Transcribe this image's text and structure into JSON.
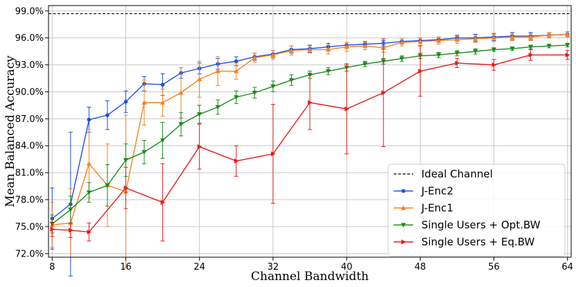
{
  "chart_data": {
    "type": "line",
    "title": "",
    "xlabel": "Channel Bandwidth",
    "ylabel": "Mean Balanced Accuracy",
    "xlim": [
      7.6,
      64.4
    ],
    "ylim": [
      71.6,
      99.6
    ],
    "xticks": [
      8,
      16,
      24,
      32,
      40,
      48,
      56,
      64
    ],
    "yticks": [
      72,
      75,
      78,
      81,
      84,
      87,
      90,
      93,
      96,
      99
    ],
    "xtick_labels": [
      "8",
      "16",
      "24",
      "32",
      "40",
      "48",
      "56",
      "64"
    ],
    "ytick_labels": [
      "72.0%",
      "75.0%",
      "78.0%",
      "81.0%",
      "84.0%",
      "87.0%",
      "90.0%",
      "93.0%",
      "96.0%",
      "99.0%"
    ],
    "grid": true,
    "legend_position": "bottom-right",
    "reference_line": {
      "name": "Ideal Channel",
      "value": 98.7,
      "color": "#000000",
      "style": "dashed"
    },
    "series": [
      {
        "name": "J-Enc2",
        "color": "#1f4fe0",
        "marker": "circle",
        "x": [
          8,
          10,
          12,
          14,
          16,
          18,
          20,
          22,
          24,
          26,
          28,
          30,
          32,
          34,
          36,
          38,
          40,
          42,
          44,
          46,
          48,
          50,
          52,
          54,
          56,
          58,
          60,
          62,
          64
        ],
        "y": [
          75.9,
          77.5,
          86.9,
          87.4,
          88.9,
          90.9,
          90.8,
          92.1,
          92.6,
          93.1,
          93.4,
          93.9,
          94.2,
          94.7,
          94.8,
          95.0,
          95.2,
          95.3,
          95.4,
          95.6,
          95.7,
          95.8,
          96.0,
          96.0,
          96.1,
          96.2,
          96.2,
          96.3,
          96.4
        ],
        "err": [
          3.4,
          8.0,
          1.4,
          1.6,
          1.2,
          0.8,
          1.2,
          0.6,
          0.6,
          0.6,
          0.5,
          0.4,
          0.4,
          0.4,
          0.4,
          0.4,
          0.3,
          0.3,
          0.3,
          0.3,
          0.3,
          0.3,
          0.3,
          0.4,
          0.4,
          0.4,
          0.4,
          0.3,
          0.3
        ]
      },
      {
        "name": "J-Enc1",
        "color": "#f5821f",
        "marker": "triangle-up",
        "x": [
          8,
          10,
          12,
          14,
          16,
          18,
          20,
          22,
          24,
          26,
          28,
          30,
          32,
          34,
          36,
          38,
          40,
          42,
          44,
          46,
          48,
          50,
          52,
          54,
          56,
          58,
          60,
          62,
          64
        ],
        "y": [
          75.2,
          75.4,
          82.0,
          79.6,
          78.9,
          88.8,
          88.8,
          89.9,
          91.4,
          92.3,
          92.3,
          93.8,
          94.1,
          94.6,
          94.7,
          94.7,
          95.0,
          95.1,
          94.9,
          95.5,
          95.6,
          95.7,
          95.8,
          95.9,
          96.0,
          96.1,
          96.1,
          96.3,
          96.4
        ],
        "err": [
          2.5,
          3.8,
          3.8,
          4.6,
          8.5,
          2.5,
          1.5,
          2.8,
          2.0,
          1.6,
          0.9,
          0.5,
          0.5,
          0.5,
          0.4,
          0.5,
          0.5,
          0.4,
          0.5,
          0.4,
          0.4,
          0.4,
          0.4,
          0.4,
          0.4,
          0.4,
          0.4,
          0.3,
          0.3
        ]
      },
      {
        "name": "Single Users + Opt.BW",
        "color": "#1a8a1a",
        "marker": "triangle-down",
        "x": [
          8,
          10,
          12,
          14,
          16,
          18,
          20,
          22,
          24,
          26,
          28,
          30,
          32,
          34,
          36,
          38,
          40,
          42,
          44,
          46,
          48,
          50,
          52,
          54,
          56,
          58,
          60,
          62,
          64
        ],
        "y": [
          75.3,
          76.9,
          78.8,
          79.6,
          82.4,
          83.3,
          84.6,
          86.4,
          87.5,
          88.3,
          89.4,
          89.9,
          90.6,
          91.3,
          91.9,
          92.3,
          92.7,
          93.1,
          93.4,
          93.7,
          94.0,
          94.1,
          94.3,
          94.5,
          94.7,
          94.8,
          95.0,
          95.1,
          95.2
        ],
        "err": [
          1.0,
          1.5,
          1.1,
          2.3,
          1.8,
          1.3,
          2.0,
          1.3,
          1.0,
          0.8,
          0.7,
          0.6,
          0.6,
          0.6,
          0.4,
          0.4,
          0.4,
          0.3,
          0.3,
          0.3,
          0.3,
          0.3,
          0.3,
          0.3,
          0.2,
          0.2,
          0.2,
          0.2,
          0.2
        ]
      },
      {
        "name": "Single Users + Eq.BW",
        "color": "#e81818",
        "marker": "triangle-right",
        "x": [
          8,
          10,
          12,
          16,
          20,
          24,
          28,
          32,
          36,
          40,
          44,
          48,
          52,
          56,
          60,
          64
        ],
        "y": [
          74.7,
          74.6,
          74.4,
          79.3,
          77.7,
          83.9,
          82.3,
          83.1,
          88.8,
          88.1,
          89.9,
          92.3,
          93.2,
          93.0,
          94.1,
          94.1
        ],
        "err": [
          0.8,
          0.8,
          1.0,
          2.3,
          4.3,
          2.5,
          1.7,
          5.5,
          3.0,
          5.0,
          6.0,
          2.8,
          0.5,
          0.6,
          0.6,
          0.5
        ]
      }
    ]
  }
}
